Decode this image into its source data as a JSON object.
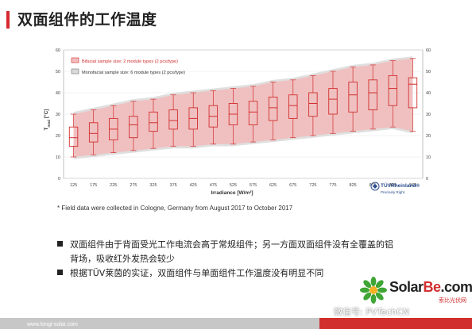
{
  "slide": {
    "title": "双面组件的工作温度",
    "footnote": "* Field data were collected in Cologne, Germany from August 2017 to October 2017",
    "bullets": [
      "双面组件由于背面受光工作电流会高于常规组件；另一方面双面组件没有全覆盖的铝",
      "背场，吸收红外发热会较少",
      "根据TÜV莱茵的实证，双面组件与单面组件工作温度没有明显不同"
    ],
    "footer_url": "www.longi-solar.com"
  },
  "branding": {
    "tuv_name": "TÜVRheinland®",
    "tuv_tagline": "Precisely Right.",
    "logo_text_a": "Solar",
    "logo_text_b": "Be",
    "logo_text_c": ".com",
    "logo_sub": "索比光伏网",
    "wechat": "微信号: PVTechCN"
  },
  "colors": {
    "accent": "#d7282f",
    "bifacial": "#d12e2e",
    "bifacial_fill": "#f2bcbc",
    "monofacial_fill": "#d9d9d9"
  },
  "chart_data": {
    "type": "box",
    "xlabel": "Irradiance [W/m²]",
    "ylabel": "T_mod [°C]",
    "ylim": [
      0,
      60
    ],
    "y_ticks": [
      0,
      10,
      20,
      30,
      40,
      50,
      60
    ],
    "categories": [
      "125",
      "175",
      "225",
      "275",
      "325",
      "375",
      "425",
      "475",
      "525",
      "575",
      "625",
      "675",
      "725",
      "775",
      "825",
      "875",
      "925",
      "975"
    ],
    "legend": [
      "Bifacial sample size: 2 module types (2 pcs/type)",
      "Monofacial sample size: 6 module types (2 pcs/type)"
    ],
    "series": [
      {
        "name": "Bifacial sample size: 2 module types (2 pcs/type)",
        "whisker_low": [
          10,
          11,
          12,
          13,
          14,
          15,
          15,
          16,
          16,
          17,
          18,
          19,
          20,
          21,
          22,
          23,
          24,
          22
        ],
        "q1": [
          15,
          17,
          18,
          19,
          22,
          23,
          23,
          24,
          25,
          25,
          27,
          28,
          29,
          30,
          31,
          32,
          34,
          33
        ],
        "median": [
          19,
          21,
          23,
          25,
          26,
          27,
          28,
          29,
          30,
          31,
          33,
          34,
          35,
          37,
          39,
          40,
          42,
          44
        ],
        "q3": [
          24,
          26,
          28,
          29,
          31,
          32,
          33,
          34,
          35,
          36,
          38,
          39,
          40,
          42,
          45,
          46,
          48,
          47
        ],
        "whisker_high": [
          30,
          32,
          34,
          36,
          37,
          39,
          40,
          41,
          42,
          43,
          45,
          46,
          48,
          50,
          52,
          53,
          55,
          56
        ]
      },
      {
        "name": "Monofacial sample size: 6 module types (2 pcs/type)",
        "band_low": [
          9,
          10,
          11,
          12,
          13,
          14,
          14,
          15,
          15,
          16,
          17,
          18,
          19,
          20,
          21,
          22,
          23,
          21
        ],
        "band_high": [
          31,
          33,
          35,
          37,
          38,
          40,
          41,
          42,
          43,
          44,
          46,
          47,
          49,
          51,
          53,
          54,
          56,
          57
        ]
      }
    ]
  }
}
